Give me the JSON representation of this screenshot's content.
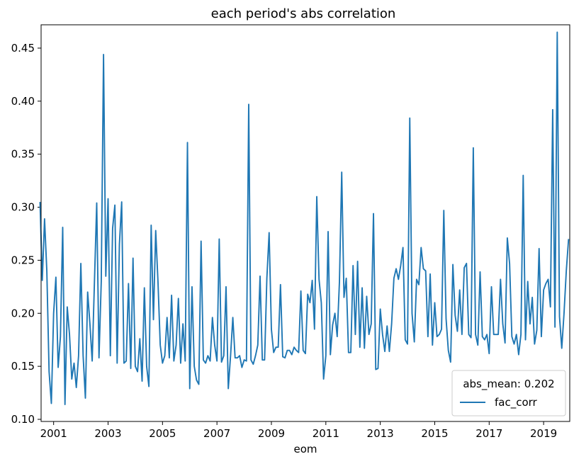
{
  "chart_data": {
    "type": "line",
    "title": "each period's abs correlation",
    "xlabel": "eom",
    "ylabel": "",
    "x_start": "2000-07",
    "x_end": "2019-12",
    "xlim": [
      2000.54,
      2019.96
    ],
    "ylim": [
      0.098,
      0.472
    ],
    "x_ticks": [
      "2001",
      "2003",
      "2005",
      "2007",
      "2009",
      "2011",
      "2013",
      "2015",
      "2017",
      "2019"
    ],
    "y_ticks": [
      "0.10",
      "0.15",
      "0.20",
      "0.25",
      "0.30",
      "0.35",
      "0.40",
      "0.45"
    ],
    "legend": {
      "title": "abs_mean: 0.202",
      "placement": "lower-right",
      "entries": [
        "fac_corr"
      ]
    },
    "line_color": "#1f77b4",
    "series": [
      {
        "name": "fac_corr",
        "values": [
          0.305,
          0.231,
          0.289,
          0.24,
          0.145,
          0.115,
          0.2,
          0.234,
          0.149,
          0.178,
          0.281,
          0.114,
          0.206,
          0.18,
          0.138,
          0.153,
          0.13,
          0.16,
          0.247,
          0.16,
          0.12,
          0.22,
          0.19,
          0.155,
          0.23,
          0.304,
          0.158,
          0.23,
          0.444,
          0.235,
          0.308,
          0.16,
          0.28,
          0.302,
          0.153,
          0.265,
          0.305,
          0.153,
          0.155,
          0.228,
          0.148,
          0.252,
          0.15,
          0.145,
          0.176,
          0.136,
          0.224,
          0.15,
          0.131,
          0.283,
          0.194,
          0.278,
          0.23,
          0.17,
          0.153,
          0.16,
          0.196,
          0.158,
          0.217,
          0.155,
          0.17,
          0.214,
          0.153,
          0.19,
          0.155,
          0.361,
          0.129,
          0.225,
          0.15,
          0.137,
          0.133,
          0.268,
          0.156,
          0.153,
          0.16,
          0.155,
          0.196,
          0.17,
          0.155,
          0.27,
          0.154,
          0.16,
          0.225,
          0.129,
          0.16,
          0.196,
          0.158,
          0.158,
          0.16,
          0.149,
          0.156,
          0.155,
          0.397,
          0.156,
          0.152,
          0.16,
          0.17,
          0.235,
          0.156,
          0.156,
          0.233,
          0.276,
          0.185,
          0.163,
          0.168,
          0.168,
          0.227,
          0.159,
          0.158,
          0.165,
          0.165,
          0.161,
          0.168,
          0.165,
          0.163,
          0.221,
          0.165,
          0.162,
          0.218,
          0.21,
          0.231,
          0.185,
          0.31,
          0.232,
          0.21,
          0.138,
          0.16,
          0.277,
          0.161,
          0.189,
          0.2,
          0.178,
          0.23,
          0.333,
          0.215,
          0.233,
          0.163,
          0.163,
          0.245,
          0.18,
          0.249,
          0.168,
          0.224,
          0.167,
          0.216,
          0.18,
          0.19,
          0.294,
          0.147,
          0.148,
          0.204,
          0.18,
          0.164,
          0.188,
          0.164,
          0.19,
          0.233,
          0.242,
          0.232,
          0.245,
          0.262,
          0.175,
          0.171,
          0.384,
          0.2,
          0.173,
          0.232,
          0.227,
          0.262,
          0.242,
          0.24,
          0.178,
          0.237,
          0.17,
          0.21,
          0.178,
          0.18,
          0.185,
          0.297,
          0.195,
          0.165,
          0.154,
          0.246,
          0.198,
          0.183,
          0.222,
          0.18,
          0.243,
          0.247,
          0.18,
          0.177,
          0.356,
          0.18,
          0.17,
          0.239,
          0.178,
          0.175,
          0.18,
          0.162,
          0.225,
          0.18,
          0.18,
          0.18,
          0.232,
          0.19,
          0.172,
          0.271,
          0.247,
          0.178,
          0.171,
          0.18,
          0.161,
          0.18,
          0.33,
          0.175,
          0.23,
          0.19,
          0.215,
          0.171,
          0.184,
          0.261,
          0.178,
          0.222,
          0.228,
          0.232,
          0.206,
          0.392,
          0.187,
          0.465,
          0.197,
          0.167,
          0.2,
          0.24,
          0.27
        ]
      }
    ]
  }
}
